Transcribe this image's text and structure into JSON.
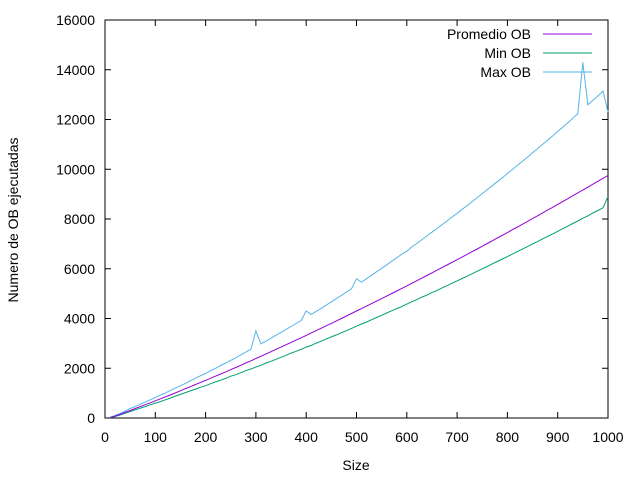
{
  "chart_data": {
    "type": "line",
    "xlabel": "Size",
    "ylabel": "Numero de OB ejecutadas",
    "xlim": [
      0,
      1000
    ],
    "ylim": [
      0,
      16000
    ],
    "xticks": [
      0,
      100,
      200,
      300,
      400,
      500,
      600,
      700,
      800,
      900,
      1000
    ],
    "yticks": [
      0,
      2000,
      4000,
      6000,
      8000,
      10000,
      12000,
      14000,
      16000
    ],
    "grid": false,
    "legend_position": "top-right",
    "x": [
      10,
      20,
      30,
      40,
      50,
      60,
      70,
      80,
      90,
      100,
      110,
      120,
      130,
      140,
      150,
      160,
      170,
      180,
      190,
      200,
      210,
      220,
      230,
      240,
      250,
      260,
      270,
      280,
      290,
      300,
      310,
      320,
      330,
      340,
      350,
      360,
      370,
      380,
      390,
      400,
      410,
      420,
      430,
      440,
      450,
      460,
      470,
      480,
      490,
      500,
      510,
      520,
      530,
      540,
      550,
      560,
      570,
      580,
      590,
      600,
      610,
      620,
      630,
      640,
      650,
      660,
      670,
      680,
      690,
      700,
      710,
      720,
      730,
      740,
      750,
      760,
      770,
      780,
      790,
      800,
      810,
      820,
      830,
      840,
      850,
      860,
      870,
      880,
      890,
      900,
      910,
      920,
      930,
      940,
      950,
      960,
      970,
      980,
      990,
      1000
    ],
    "series": [
      {
        "name": "Promedio OB",
        "color": "#9400d3",
        "values": [
          20,
          78,
          145,
          225,
          300,
          380,
          460,
          535,
          610,
          690,
          770,
          850,
          930,
          1010,
          1095,
          1180,
          1260,
          1345,
          1430,
          1510,
          1600,
          1685,
          1770,
          1855,
          1945,
          2030,
          2120,
          2210,
          2300,
          2390,
          2480,
          2575,
          2665,
          2760,
          2850,
          2945,
          3040,
          3130,
          3225,
          3320,
          3420,
          3515,
          3610,
          3710,
          3805,
          3905,
          4000,
          4100,
          4200,
          4300,
          4400,
          4500,
          4600,
          4700,
          4800,
          4900,
          5005,
          5105,
          5210,
          5310,
          5415,
          5520,
          5625,
          5730,
          5835,
          5940,
          6045,
          6150,
          6260,
          6365,
          6470,
          6580,
          6690,
          6795,
          6905,
          7015,
          7125,
          7235,
          7345,
          7455,
          7570,
          7680,
          7790,
          7905,
          8020,
          8130,
          8245,
          8360,
          8470,
          8585,
          8700,
          8815,
          8935,
          9050,
          9165,
          9280,
          9400,
          9515,
          9635,
          9750
        ]
      },
      {
        "name": "Min OB",
        "color": "#009e73",
        "values": [
          10,
          60,
          120,
          190,
          260,
          330,
          395,
          460,
          530,
          600,
          660,
          730,
          800,
          880,
          950,
          1020,
          1090,
          1160,
          1240,
          1300,
          1380,
          1450,
          1520,
          1590,
          1680,
          1740,
          1820,
          1900,
          1970,
          2050,
          2120,
          2210,
          2280,
          2360,
          2440,
          2520,
          2610,
          2680,
          2760,
          2850,
          2920,
          3010,
          3090,
          3180,
          3260,
          3340,
          3430,
          3510,
          3600,
          3690,
          3780,
          3860,
          3950,
          4040,
          4130,
          4220,
          4310,
          4400,
          4480,
          4580,
          4670,
          4760,
          4860,
          4940,
          5040,
          5130,
          5230,
          5320,
          5420,
          5510,
          5610,
          5700,
          5800,
          5900,
          6000,
          6090,
          6200,
          6290,
          6390,
          6490,
          6590,
          6690,
          6790,
          6890,
          7000,
          7090,
          7200,
          7300,
          7400,
          7500,
          7610,
          7710,
          7820,
          7920,
          8030,
          8130,
          8240,
          8340,
          8450,
          8900
        ]
      },
      {
        "name": "Max OB",
        "color": "#56b4e9",
        "values": [
          30,
          100,
          180,
          280,
          380,
          460,
          560,
          640,
          730,
          820,
          920,
          1010,
          1110,
          1200,
          1300,
          1390,
          1500,
          1600,
          1700,
          1790,
          1900,
          2000,
          2110,
          2210,
          2320,
          2420,
          2540,
          2650,
          2760,
          3500,
          2980,
          3090,
          3210,
          3330,
          3440,
          3560,
          3680,
          3800,
          3920,
          4300,
          4160,
          4290,
          4410,
          4540,
          4670,
          4800,
          4930,
          5060,
          5190,
          5600,
          5460,
          5600,
          5740,
          5880,
          6020,
          6160,
          6300,
          6440,
          6590,
          6700,
          6880,
          7020,
          7170,
          7320,
          7470,
          7620,
          7770,
          7920,
          8080,
          8230,
          8390,
          8540,
          8700,
          8860,
          9020,
          9180,
          9340,
          9500,
          9660,
          9830,
          9990,
          10160,
          10320,
          10490,
          10660,
          10830,
          11000,
          11170,
          11340,
          11520,
          11690,
          11870,
          12050,
          12230,
          14300,
          12590,
          12770,
          12950,
          13140,
          12300
        ]
      }
    ]
  }
}
